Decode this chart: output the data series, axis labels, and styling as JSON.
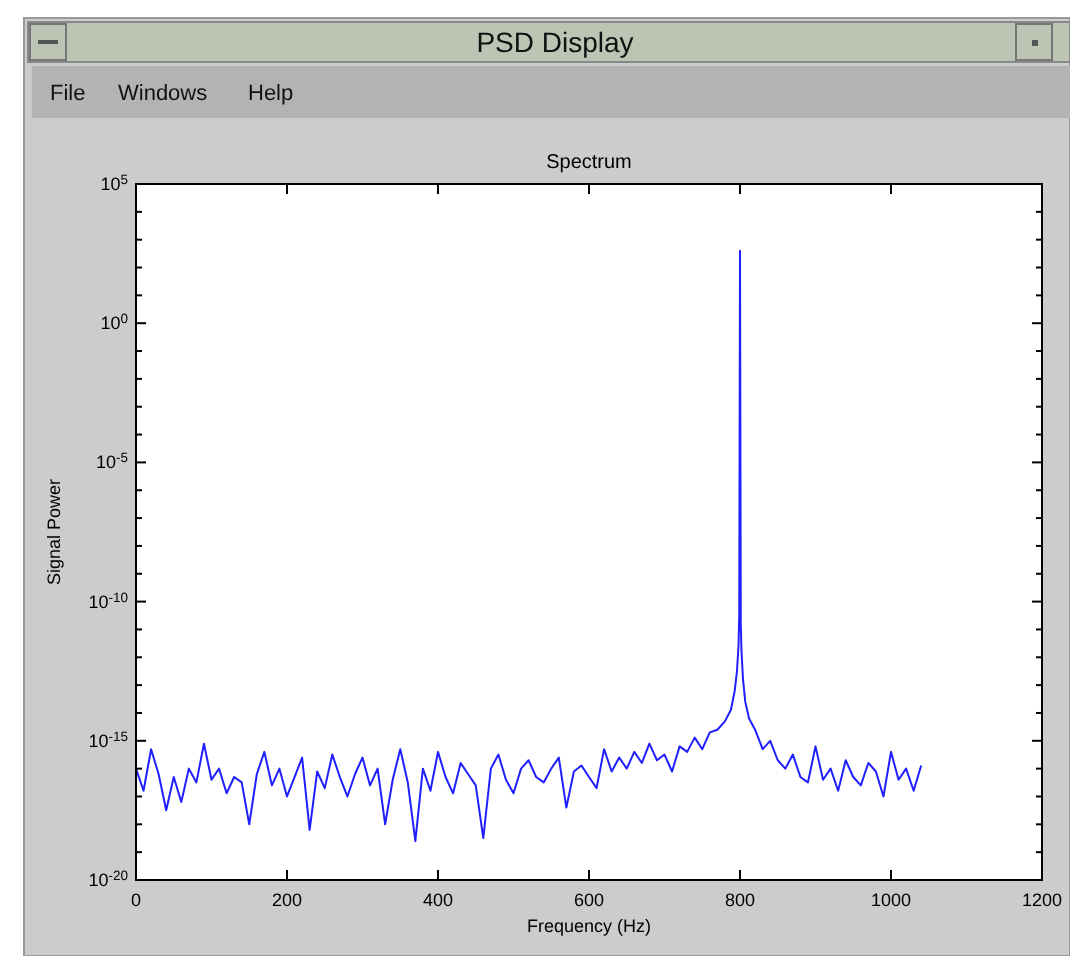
{
  "chart_data": {
    "type": "line",
    "title": "Spectrum",
    "xlabel": "Frequency (Hz)",
    "ylabel": "Signal Power",
    "annotations": [
      "PSD Display",
      "File",
      "Windows",
      "Help"
    ],
    "log": "y",
    "grid": false,
    "marker": "none",
    "line_style": "solid",
    "xlim": [
      0,
      1200
    ],
    "xticks": [
      0,
      200,
      400,
      600,
      800,
      1000,
      1200
    ],
    "ylim": [
      1e-20,
      100000.0
    ],
    "yticks": [
      {
        "value": 1e-20,
        "label": "10$^{-20}$"
      },
      {
        "value": 1e-19,
        "label": null
      },
      {
        "value": 1e-18,
        "label": null
      },
      {
        "value": 1e-17,
        "label": null
      },
      {
        "value": 1e-16,
        "label": null
      },
      {
        "value": 1e-15,
        "label": "10$^{-15}$"
      },
      {
        "value": 1e-14,
        "label": null
      },
      {
        "value": 1e-13,
        "label": null
      },
      {
        "value": 1e-12,
        "label": null
      },
      {
        "value": 1e-11,
        "label": null
      },
      {
        "value": 1e-10,
        "label": "10$^{-10}$"
      },
      {
        "value": 1e-09,
        "label": null
      },
      {
        "value": 1e-08,
        "label": null
      },
      {
        "value": 1e-07,
        "label": null
      },
      {
        "value": 1e-06,
        "label": null
      },
      {
        "value": 1e-05,
        "label": "10$^{-5}$"
      },
      {
        "value": 0.0001,
        "label": null
      },
      {
        "value": 0.001,
        "label": null
      },
      {
        "value": 0.01,
        "label": null
      },
      {
        "value": 0.1,
        "label": null
      },
      {
        "value": 1,
        "label": "10$^{0}$"
      },
      {
        "value": 10,
        "label": null
      },
      {
        "value": 100,
        "label": null
      },
      {
        "value": 1000,
        "label": null
      },
      {
        "value": 10000,
        "label": null
      },
      {
        "value": 100000.0,
        "label": "10$^{5}$"
      }
    ],
    "series": [
      {
        "color": "#1f1fff",
        "x": [
          0,
          10,
          20,
          30,
          40,
          50,
          60,
          70,
          80,
          90,
          100,
          110,
          120,
          130,
          140,
          150,
          160,
          170,
          180,
          190,
          200,
          210,
          220,
          230,
          240,
          250,
          260,
          270,
          280,
          290,
          300,
          310,
          320,
          330,
          340,
          350,
          360,
          370,
          380,
          390,
          400,
          410,
          420,
          430,
          440,
          450,
          460,
          470,
          480,
          490,
          500,
          510,
          520,
          530,
          540,
          550,
          560,
          570,
          580,
          590,
          600,
          610,
          620,
          630,
          640,
          650,
          660,
          670,
          680,
          690,
          700,
          710,
          720,
          730,
          740,
          750,
          760,
          770,
          780,
          788,
          793,
          796,
          798,
          799,
          800,
          801,
          802,
          804,
          807,
          812,
          820,
          830,
          840,
          850,
          860,
          870,
          880,
          890,
          900,
          910,
          920,
          930,
          940,
          950,
          960,
          970,
          980,
          990,
          1000,
          1010,
          1020,
          1030,
          1040
        ],
        "values": [
          1e-16,
          1.6e-17,
          5e-16,
          6.3e-17,
          3.2e-18,
          5e-17,
          6.3e-18,
          1e-16,
          3.2e-17,
          7.9e-16,
          4e-17,
          1e-16,
          1.3e-17,
          5e-17,
          3.2e-17,
          1e-18,
          6.3e-17,
          4e-16,
          2.5e-17,
          1e-16,
          1e-17,
          5e-17,
          2.5e-16,
          6.3e-19,
          7.9e-17,
          2e-17,
          3.2e-16,
          5e-17,
          1e-17,
          6.3e-17,
          2.5e-16,
          2.5e-17,
          1e-16,
          1e-18,
          4e-17,
          5e-16,
          3.2e-17,
          2.5e-19,
          1e-16,
          1.6e-17,
          4e-16,
          5e-17,
          1.3e-17,
          1.6e-16,
          6.3e-17,
          2.5e-17,
          3.2e-19,
          1e-16,
          3.2e-16,
          4e-17,
          1.3e-17,
          1e-16,
          2e-16,
          5e-17,
          3.2e-17,
          1e-16,
          2.5e-16,
          4e-18,
          7.9e-17,
          1.3e-16,
          5e-17,
          2e-17,
          5e-16,
          7.9e-17,
          2.5e-16,
          1e-16,
          4e-16,
          1.6e-16,
          7.9e-16,
          2e-16,
          3.2e-16,
          7.9e-17,
          6.3e-16,
          4e-16,
          1.3e-15,
          5e-16,
          2e-15,
          2.5e-15,
          5e-15,
          1.3e-14,
          6.3e-14,
          3.2e-13,
          2.5e-12,
          3.2e-11,
          400,
          1.6e-11,
          1.6e-12,
          1.6e-13,
          2.5e-14,
          6.3e-15,
          2.5e-15,
          5e-16,
          1e-15,
          2e-16,
          1e-16,
          3.2e-16,
          5e-17,
          3.2e-17,
          6.3e-16,
          4e-17,
          1e-16,
          1.6e-17,
          2e-16,
          5e-17,
          2.5e-17,
          1.6e-16,
          7.9e-17,
          1e-17,
          4e-16,
          4e-17,
          1e-16,
          1.6e-17,
          1.3e-16
        ]
      }
    ]
  }
}
